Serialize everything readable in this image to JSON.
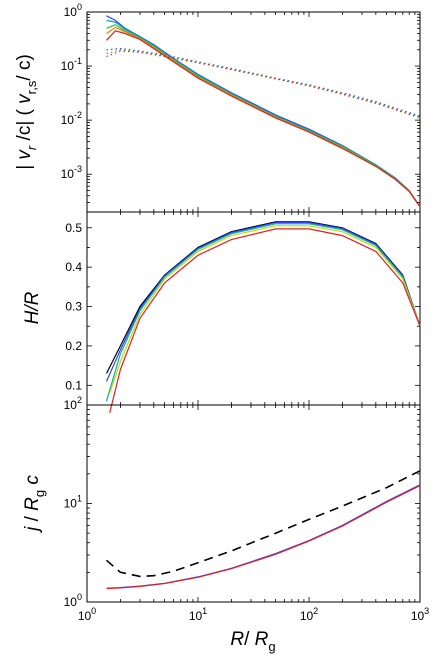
{
  "chart_data": [
    {
      "type": "line",
      "panel": "top",
      "ylabel": "| v_r /c| ( v_r,s / c)",
      "ylabel_parts": {
        "bar_left": "| ",
        "v1": "v",
        "sub1": "r",
        "mid": " /c| ( ",
        "v2": "v",
        "sub2": "r,s",
        "end": "/ c)"
      },
      "xscale": "log",
      "yscale": "log",
      "xlim": [
        1,
        1000
      ],
      "ylim": [
        0.0002,
        1
      ],
      "y_ticks": [
        {
          "value": 0.001,
          "base": "10",
          "exp": "-3"
        },
        {
          "value": 0.01,
          "base": "10",
          "exp": "-2"
        },
        {
          "value": 0.1,
          "base": "10",
          "exp": "-1"
        },
        {
          "value": 1,
          "base": "10",
          "exp": "0"
        }
      ],
      "series": [
        {
          "style": "solid",
          "color": "#3040ff",
          "x": [
            1.5,
            1.8,
            2.2,
            3,
            4,
            6,
            10,
            20,
            50,
            100,
            200,
            400,
            600,
            800,
            1000
          ],
          "y": [
            0.85,
            0.7,
            0.5,
            0.35,
            0.25,
            0.14,
            0.07,
            0.032,
            0.0125,
            0.0068,
            0.0034,
            0.0015,
            0.00085,
            0.0005,
            0.00025
          ]
        },
        {
          "style": "solid",
          "color": "#00b0b0",
          "x": [
            1.5,
            1.8,
            2.2,
            3,
            4,
            6,
            10,
            20,
            50,
            100,
            200,
            400,
            600,
            800,
            1000
          ],
          "y": [
            0.7,
            0.65,
            0.48,
            0.34,
            0.24,
            0.135,
            0.068,
            0.031,
            0.012,
            0.0065,
            0.0033,
            0.0015,
            0.00084,
            0.0005,
            0.00025
          ]
        },
        {
          "style": "solid",
          "color": "#30c030",
          "x": [
            1.5,
            1.8,
            2.2,
            3,
            4,
            6,
            10,
            20,
            50,
            100,
            200,
            400,
            600,
            800,
            1000
          ],
          "y": [
            0.5,
            0.58,
            0.45,
            0.33,
            0.23,
            0.13,
            0.065,
            0.03,
            0.0117,
            0.0063,
            0.0032,
            0.00145,
            0.00082,
            0.00049,
            0.00025
          ]
        },
        {
          "style": "solid",
          "color": "#ff8000",
          "x": [
            1.5,
            1.8,
            2.2,
            3,
            4,
            6,
            10,
            20,
            50,
            100,
            200,
            400,
            600,
            800,
            1000
          ],
          "y": [
            0.4,
            0.52,
            0.43,
            0.32,
            0.22,
            0.125,
            0.062,
            0.029,
            0.0113,
            0.0061,
            0.0031,
            0.0014,
            0.0008,
            0.00048,
            0.00025
          ]
        },
        {
          "style": "solid",
          "color": "#e02020",
          "x": [
            1.5,
            1.8,
            2.2,
            3,
            4,
            6,
            10,
            20,
            50,
            100,
            200,
            400,
            600,
            800,
            1000
          ],
          "y": [
            0.3,
            0.45,
            0.4,
            0.31,
            0.21,
            0.12,
            0.06,
            0.028,
            0.011,
            0.006,
            0.003,
            0.0014,
            0.0008,
            0.00048,
            0.00025
          ]
        },
        {
          "style": "dotted",
          "color": "#3040ff",
          "x": [
            1.5,
            2,
            3,
            5,
            10,
            20,
            50,
            100,
            200,
            400,
            700,
            1000
          ],
          "y": [
            0.2,
            0.21,
            0.19,
            0.16,
            0.12,
            0.09,
            0.06,
            0.045,
            0.032,
            0.022,
            0.015,
            0.012
          ]
        },
        {
          "style": "dotted",
          "color": "#30c030",
          "x": [
            1.5,
            2,
            3,
            5,
            10,
            20,
            50,
            100,
            200,
            400,
            700,
            1000
          ],
          "y": [
            0.17,
            0.2,
            0.185,
            0.155,
            0.118,
            0.088,
            0.059,
            0.044,
            0.031,
            0.021,
            0.0145,
            0.0115
          ]
        },
        {
          "style": "dotted",
          "color": "#e02020",
          "x": [
            1.5,
            2,
            3,
            5,
            10,
            20,
            50,
            100,
            200,
            400,
            700,
            1000
          ],
          "y": [
            0.15,
            0.19,
            0.18,
            0.15,
            0.115,
            0.086,
            0.058,
            0.043,
            0.03,
            0.0205,
            0.014,
            0.011
          ]
        }
      ]
    },
    {
      "type": "line",
      "panel": "middle",
      "ylabel": "H/R",
      "xscale": "log",
      "yscale": "linear",
      "xlim": [
        1,
        1000
      ],
      "ylim": [
        0.05,
        0.54
      ],
      "y_ticks": [
        {
          "value": 0.1,
          "label": "0.1"
        },
        {
          "value": 0.2,
          "label": "0.2"
        },
        {
          "value": 0.3,
          "label": "0.3"
        },
        {
          "value": 0.4,
          "label": "0.4"
        },
        {
          "value": 0.5,
          "label": "0.5"
        }
      ],
      "series": [
        {
          "style": "solid",
          "color": "#000000",
          "x": [
            1.5,
            2,
            3,
            5,
            10,
            20,
            50,
            100,
            200,
            400,
            700,
            1000
          ],
          "y": [
            0.13,
            0.2,
            0.3,
            0.38,
            0.45,
            0.49,
            0.515,
            0.515,
            0.5,
            0.46,
            0.38,
            0.25
          ]
        },
        {
          "style": "solid",
          "color": "#3040ff",
          "x": [
            1.5,
            2,
            3,
            5,
            10,
            20,
            50,
            100,
            200,
            400,
            700,
            1000
          ],
          "y": [
            0.11,
            0.19,
            0.295,
            0.378,
            0.448,
            0.488,
            0.513,
            0.513,
            0.498,
            0.458,
            0.378,
            0.25
          ]
        },
        {
          "style": "solid",
          "color": "#00b0b0",
          "x": [
            1.5,
            2,
            3,
            5,
            10,
            20,
            50,
            100,
            200,
            400,
            700,
            1000
          ],
          "y": [
            0.06,
            0.18,
            0.29,
            0.375,
            0.445,
            0.485,
            0.51,
            0.51,
            0.495,
            0.455,
            0.375,
            0.25
          ]
        },
        {
          "style": "solid",
          "color": "#c8d800",
          "x": [
            1.6,
            2,
            3,
            5,
            10,
            20,
            50,
            100,
            200,
            400,
            700,
            1000
          ],
          "y": [
            0.08,
            0.16,
            0.28,
            0.37,
            0.44,
            0.48,
            0.505,
            0.505,
            0.49,
            0.45,
            0.37,
            0.25
          ]
        },
        {
          "style": "solid",
          "color": "#e02020",
          "x": [
            1.6,
            2,
            3,
            5,
            10,
            20,
            50,
            100,
            200,
            400,
            700,
            1000
          ],
          "y": [
            0.03,
            0.14,
            0.27,
            0.36,
            0.43,
            0.47,
            0.497,
            0.497,
            0.48,
            0.44,
            0.36,
            0.25
          ]
        }
      ]
    },
    {
      "type": "line",
      "panel": "bottom",
      "ylabel": "j / R_g c",
      "ylabel_parts": {
        "v1": "j",
        "mid": " / ",
        "v2": "R",
        "sub": "g",
        "end": " c"
      },
      "xlabel": "R/ R_g",
      "xlabel_parts": {
        "v1": "R",
        "mid": "/ ",
        "v2": "R",
        "sub": "g"
      },
      "xscale": "log",
      "yscale": "log",
      "xlim": [
        1,
        1000
      ],
      "ylim": [
        1,
        100
      ],
      "x_ticks": [
        {
          "value": 1,
          "base": "10",
          "exp": "0"
        },
        {
          "value": 10,
          "base": "10",
          "exp": "1"
        },
        {
          "value": 100,
          "base": "10",
          "exp": "2"
        },
        {
          "value": 1000,
          "base": "10",
          "exp": "3"
        }
      ],
      "y_ticks": [
        {
          "value": 1,
          "base": "10",
          "exp": "0"
        },
        {
          "value": 10,
          "base": "10",
          "exp": "1"
        },
        {
          "value": 100,
          "base": "10",
          "exp": "2"
        }
      ],
      "series": [
        {
          "style": "dashed",
          "color": "#000000",
          "x": [
            1.5,
            2,
            3,
            4,
            6,
            10,
            20,
            50,
            100,
            200,
            500,
            1000
          ],
          "y": [
            2.65,
            2.0,
            1.82,
            1.85,
            2.05,
            2.5,
            3.3,
            5.0,
            6.9,
            9.4,
            14.5,
            21.5
          ]
        },
        {
          "style": "solid",
          "color": "#3040ff",
          "x": [
            1.5,
            2,
            3,
            5,
            10,
            20,
            50,
            100,
            200,
            500,
            1000
          ],
          "y": [
            1.38,
            1.4,
            1.45,
            1.55,
            1.8,
            2.2,
            3.1,
            4.2,
            6.0,
            10.5,
            15.5
          ]
        },
        {
          "style": "solid",
          "color": "#e02020",
          "x": [
            1.5,
            2,
            3,
            5,
            10,
            20,
            50,
            100,
            200,
            500,
            1000
          ],
          "y": [
            1.37,
            1.39,
            1.44,
            1.54,
            1.78,
            2.18,
            3.05,
            4.15,
            5.9,
            10.3,
            15.2
          ]
        }
      ]
    }
  ]
}
